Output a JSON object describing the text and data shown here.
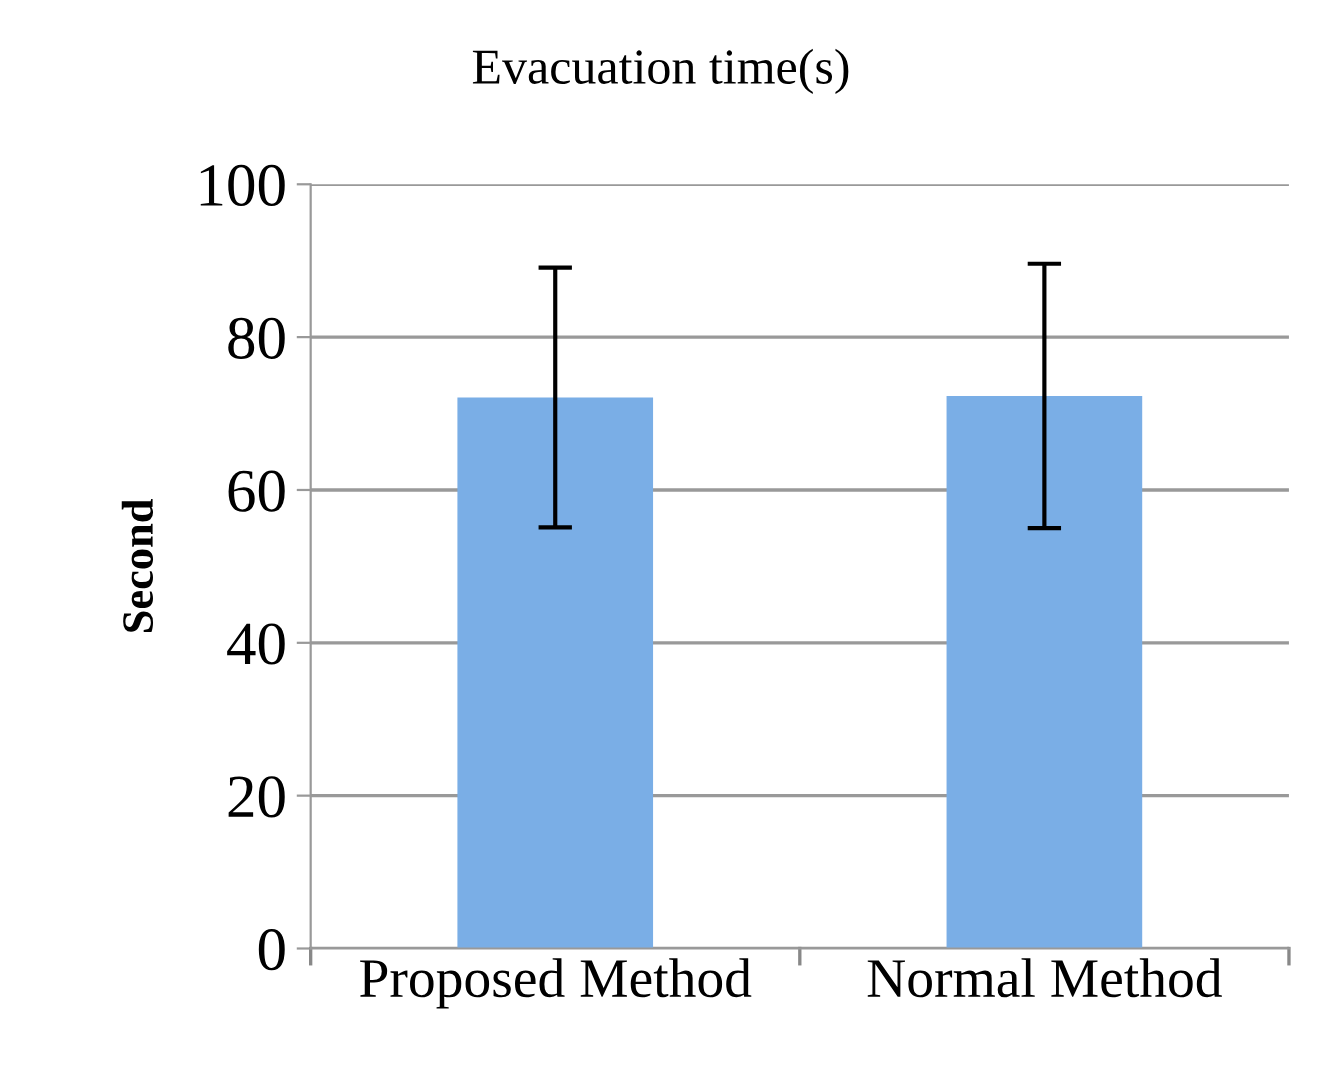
{
  "chart_data": {
    "type": "bar",
    "title": "Evacuation time(s)",
    "ylabel": "Second",
    "categories": [
      "Proposed Method",
      "Normal Method"
    ],
    "values": [
      72.1,
      72.3
    ],
    "errors": [
      17,
      17.3
    ],
    "color": "#7aaee6",
    "ylim": [
      0,
      100
    ],
    "yticks": [
      0,
      20,
      40,
      60,
      80,
      100
    ],
    "grid": "y"
  }
}
